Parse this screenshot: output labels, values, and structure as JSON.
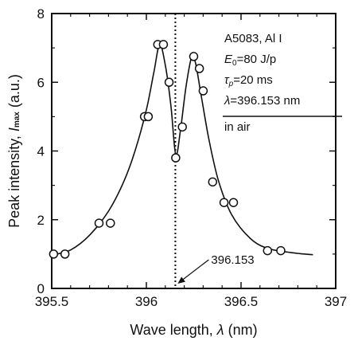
{
  "chart_data": {
    "type": "scatter",
    "xlabel": {
      "prefix": "Wave length, ",
      "symbol": "λ",
      "suffix": " (nm)"
    },
    "ylabel": {
      "prefix": "Peak intensity, ",
      "symbol": "I",
      "subscript": "max",
      "suffix": "  (a.u.)"
    },
    "xlim": [
      395.5,
      397
    ],
    "ylim": [
      0,
      8
    ],
    "xticks": [
      395.5,
      396,
      396.5,
      397
    ],
    "xtick_labels": [
      "395.5",
      "396",
      "396.5",
      "397"
    ],
    "yticks": [
      0,
      2,
      4,
      6,
      8
    ],
    "ytick_labels": [
      "0",
      "2",
      "4",
      "6",
      "8"
    ],
    "grid": false,
    "series": [
      {
        "marker": "open-circle",
        "x": [
          395.51,
          395.57,
          395.75,
          395.81,
          395.99,
          396.01,
          396.06,
          396.09,
          396.12,
          396.155,
          396.19,
          396.25,
          396.28,
          396.3,
          396.35,
          396.41,
          396.46,
          396.64,
          396.71
        ],
        "y": [
          1.0,
          1.0,
          1.9,
          1.9,
          5.0,
          5.0,
          7.1,
          7.1,
          6.0,
          3.8,
          4.7,
          6.75,
          6.4,
          5.75,
          3.1,
          2.5,
          2.5,
          1.1,
          1.1
        ]
      }
    ],
    "fit_curve": {
      "style": "solid",
      "x": [
        395.5,
        395.6,
        395.7,
        395.8,
        395.88,
        395.94,
        396.0,
        396.04,
        396.07,
        396.1,
        396.13,
        396.155,
        396.18,
        396.21,
        396.24,
        396.26,
        396.29,
        396.33,
        396.38,
        396.45,
        396.55,
        396.65,
        396.8,
        396.88
      ],
      "y": [
        0.97,
        1.12,
        1.55,
        2.25,
        3.1,
        4.0,
        5.2,
        6.3,
        7.1,
        6.5,
        5.3,
        3.9,
        4.6,
        5.9,
        6.75,
        6.55,
        5.6,
        4.35,
        3.15,
        2.15,
        1.45,
        1.15,
        1.02,
        0.98
      ]
    },
    "reference_line": {
      "x": 396.153,
      "style": "dotted",
      "label": "396.153"
    },
    "annotation": {
      "lines": [
        {
          "main": "A5083, Al I"
        },
        {
          "main": "E",
          "sub": "0",
          "rest": "=80 J/p"
        },
        {
          "main": "τ",
          "sub": "p",
          "rest": "=20 ms"
        },
        {
          "main": "λ",
          "rest": "=396.153 nm"
        },
        {
          "main": "in air"
        }
      ]
    }
  }
}
